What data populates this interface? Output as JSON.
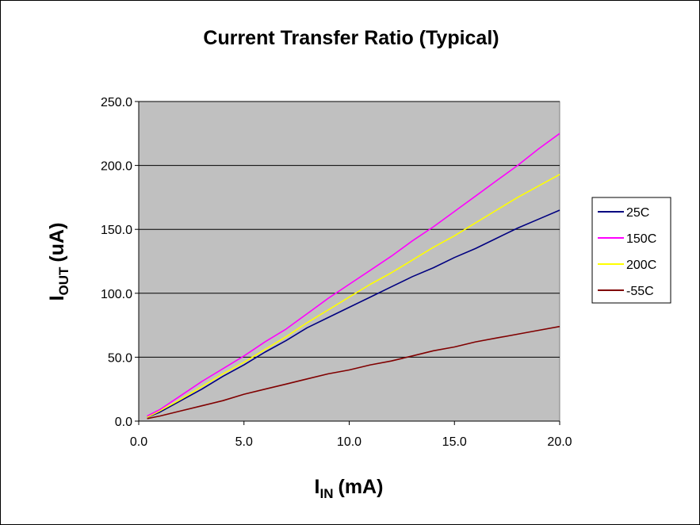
{
  "chart_data": {
    "type": "line",
    "title": "Current Transfer Ratio (Typical)",
    "xlabel_main": "I",
    "xlabel_sub": "IN",
    "xlabel_unit": "(mA)",
    "ylabel_main": "I",
    "ylabel_sub": "OUT",
    "ylabel_unit": "(uA)",
    "xlim": [
      0,
      20
    ],
    "ylim": [
      0,
      250
    ],
    "x_ticks": [
      "0.0",
      "5.0",
      "10.0",
      "15.0",
      "20.0"
    ],
    "y_ticks": [
      "0.0",
      "50.0",
      "100.0",
      "150.0",
      "200.0",
      "250.0"
    ],
    "grid": "horizontal",
    "plot_background": "#C0C0C0",
    "legend_position": "right",
    "series": [
      {
        "name": "25C",
        "color": "#000080",
        "x": [
          0.4,
          1.0,
          2.0,
          3.0,
          4.0,
          5.0,
          6.0,
          7.0,
          8.0,
          9.0,
          10.0,
          11.0,
          12.0,
          13.0,
          14.0,
          15.0,
          16.0,
          17.0,
          18.0,
          19.0,
          20.0
        ],
        "y": [
          3,
          7,
          16,
          25,
          35,
          44,
          54,
          63,
          73,
          81,
          89,
          97,
          105,
          113,
          120,
          128,
          135,
          143,
          151,
          158,
          165
        ]
      },
      {
        "name": "150C",
        "color": "#FF00FF",
        "x": [
          0.4,
          1.0,
          2.0,
          3.0,
          4.0,
          5.0,
          6.0,
          7.0,
          8.0,
          9.0,
          10.0,
          11.0,
          12.0,
          13.0,
          14.0,
          15.0,
          16.0,
          17.0,
          18.0,
          19.0,
          20.0
        ],
        "y": [
          4,
          9,
          20,
          31,
          41,
          51,
          62,
          72,
          84,
          96,
          107,
          118,
          129,
          141,
          152,
          164,
          176,
          188,
          200,
          213,
          225
        ]
      },
      {
        "name": "200C",
        "color": "#FFFF00",
        "x": [
          0.4,
          1.0,
          2.0,
          3.0,
          4.0,
          5.0,
          6.0,
          7.0,
          8.0,
          9.0,
          10.0,
          11.0,
          12.0,
          13.0,
          14.0,
          15.0,
          16.0,
          17.0,
          18.0,
          19.0,
          20.0
        ],
        "y": [
          3,
          8,
          17,
          27,
          37,
          46,
          56,
          66,
          77,
          87,
          97,
          107,
          116,
          126,
          136,
          145,
          155,
          165,
          175,
          184,
          193
        ]
      },
      {
        "name": "-55C",
        "color": "#800000",
        "x": [
          0.4,
          1.0,
          2.0,
          3.0,
          4.0,
          5.0,
          6.0,
          7.0,
          8.0,
          9.0,
          10.0,
          11.0,
          12.0,
          13.0,
          14.0,
          15.0,
          16.0,
          17.0,
          18.0,
          19.0,
          20.0
        ],
        "y": [
          2,
          4,
          8,
          12,
          16,
          21,
          25,
          29,
          33,
          37,
          40,
          44,
          47,
          51,
          55,
          58,
          62,
          65,
          68,
          71,
          74
        ]
      }
    ]
  }
}
